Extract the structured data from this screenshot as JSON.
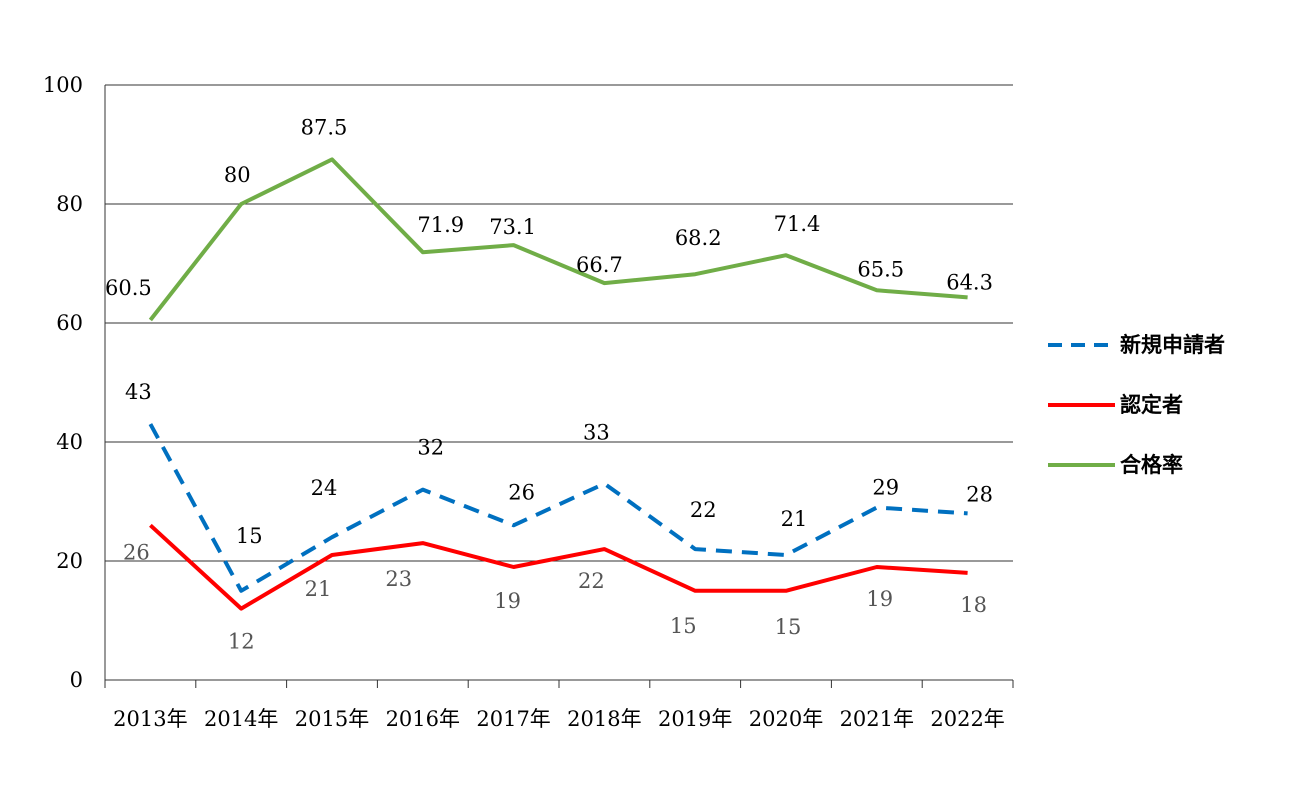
{
  "chart_data": {
    "type": "line",
    "categories": [
      "2013年",
      "2014年",
      "2015年",
      "2016年",
      "2017年",
      "2018年",
      "2019年",
      "2020年",
      "2021年",
      "2022年"
    ],
    "ylim": [
      0,
      100
    ],
    "yticks": [
      "0",
      "20",
      "40",
      "60",
      "80",
      "100"
    ],
    "grid": true,
    "legend_position": "right",
    "series": [
      {
        "name": "新規申請者",
        "values": [
          43,
          15,
          24,
          32,
          26,
          33,
          22,
          21,
          29,
          28
        ],
        "labels": [
          "43",
          "15",
          "24",
          "32",
          "26",
          "33",
          "22",
          "21",
          "29",
          "28"
        ],
        "color": "#0070C0",
        "label_color": "#000000",
        "style": "dashed"
      },
      {
        "name": "認定者",
        "values": [
          26,
          12,
          21,
          23,
          19,
          22,
          15,
          15,
          19,
          18
        ],
        "labels": [
          "26",
          "12",
          "21",
          "23",
          "19",
          "22",
          "15",
          "15",
          "19",
          "18"
        ],
        "color": "#FF0000",
        "label_color": "#555555",
        "style": "solid"
      },
      {
        "name": "合格率",
        "values": [
          60.5,
          80,
          87.5,
          71.9,
          73.1,
          66.7,
          68.2,
          71.4,
          65.5,
          64.3
        ],
        "labels": [
          "60.5",
          "80",
          "87.5",
          "71.9",
          "73.1",
          "66.7",
          "68.2",
          "71.4",
          "65.5",
          "64.3"
        ],
        "color": "#70AD47",
        "label_color": "#000000",
        "style": "solid"
      }
    ]
  }
}
